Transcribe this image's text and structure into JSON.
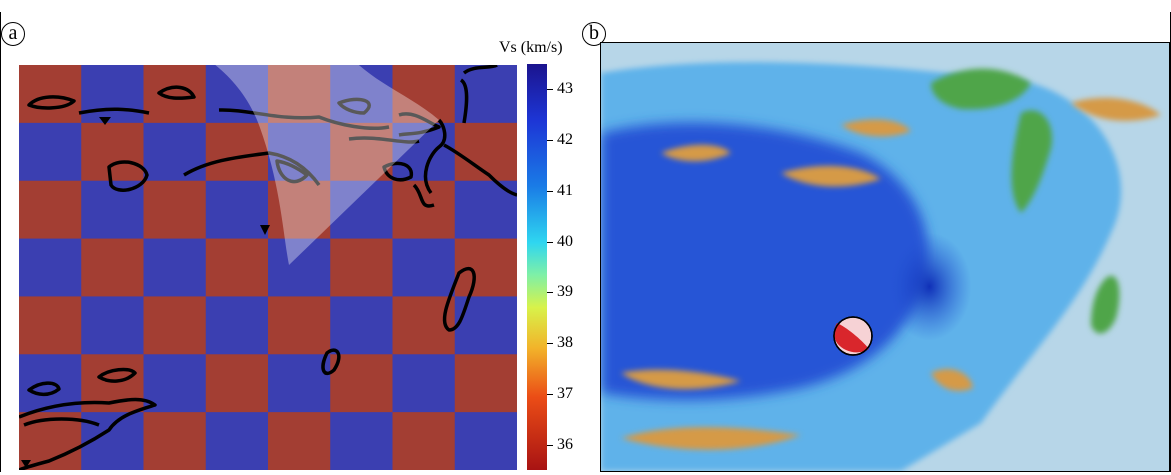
{
  "panel_a": {
    "label": "a"
  },
  "panel_b": {
    "label": "b"
  },
  "colorbar": {
    "title": "Vs (km/s)",
    "ticks": [
      "43",
      "42",
      "41",
      "40",
      "39",
      "38",
      "37",
      "36"
    ],
    "range": [
      35.5,
      43.5
    ]
  },
  "checkerboard": {
    "rows": 7,
    "cols": 8,
    "color_low": "#a33e33",
    "color_high": "#3b3fb1"
  },
  "watermark_color": "#ffffff",
  "map_colors": {
    "deep": "#2555d6",
    "shallow": "#5fb2ea",
    "shelf": "#b7d6e8",
    "land_green": "#4fa54a",
    "land_orange": "#d59a47"
  },
  "focal_mechanism": {
    "fill": "#d9262c",
    "light": "#f6d2d5"
  }
}
